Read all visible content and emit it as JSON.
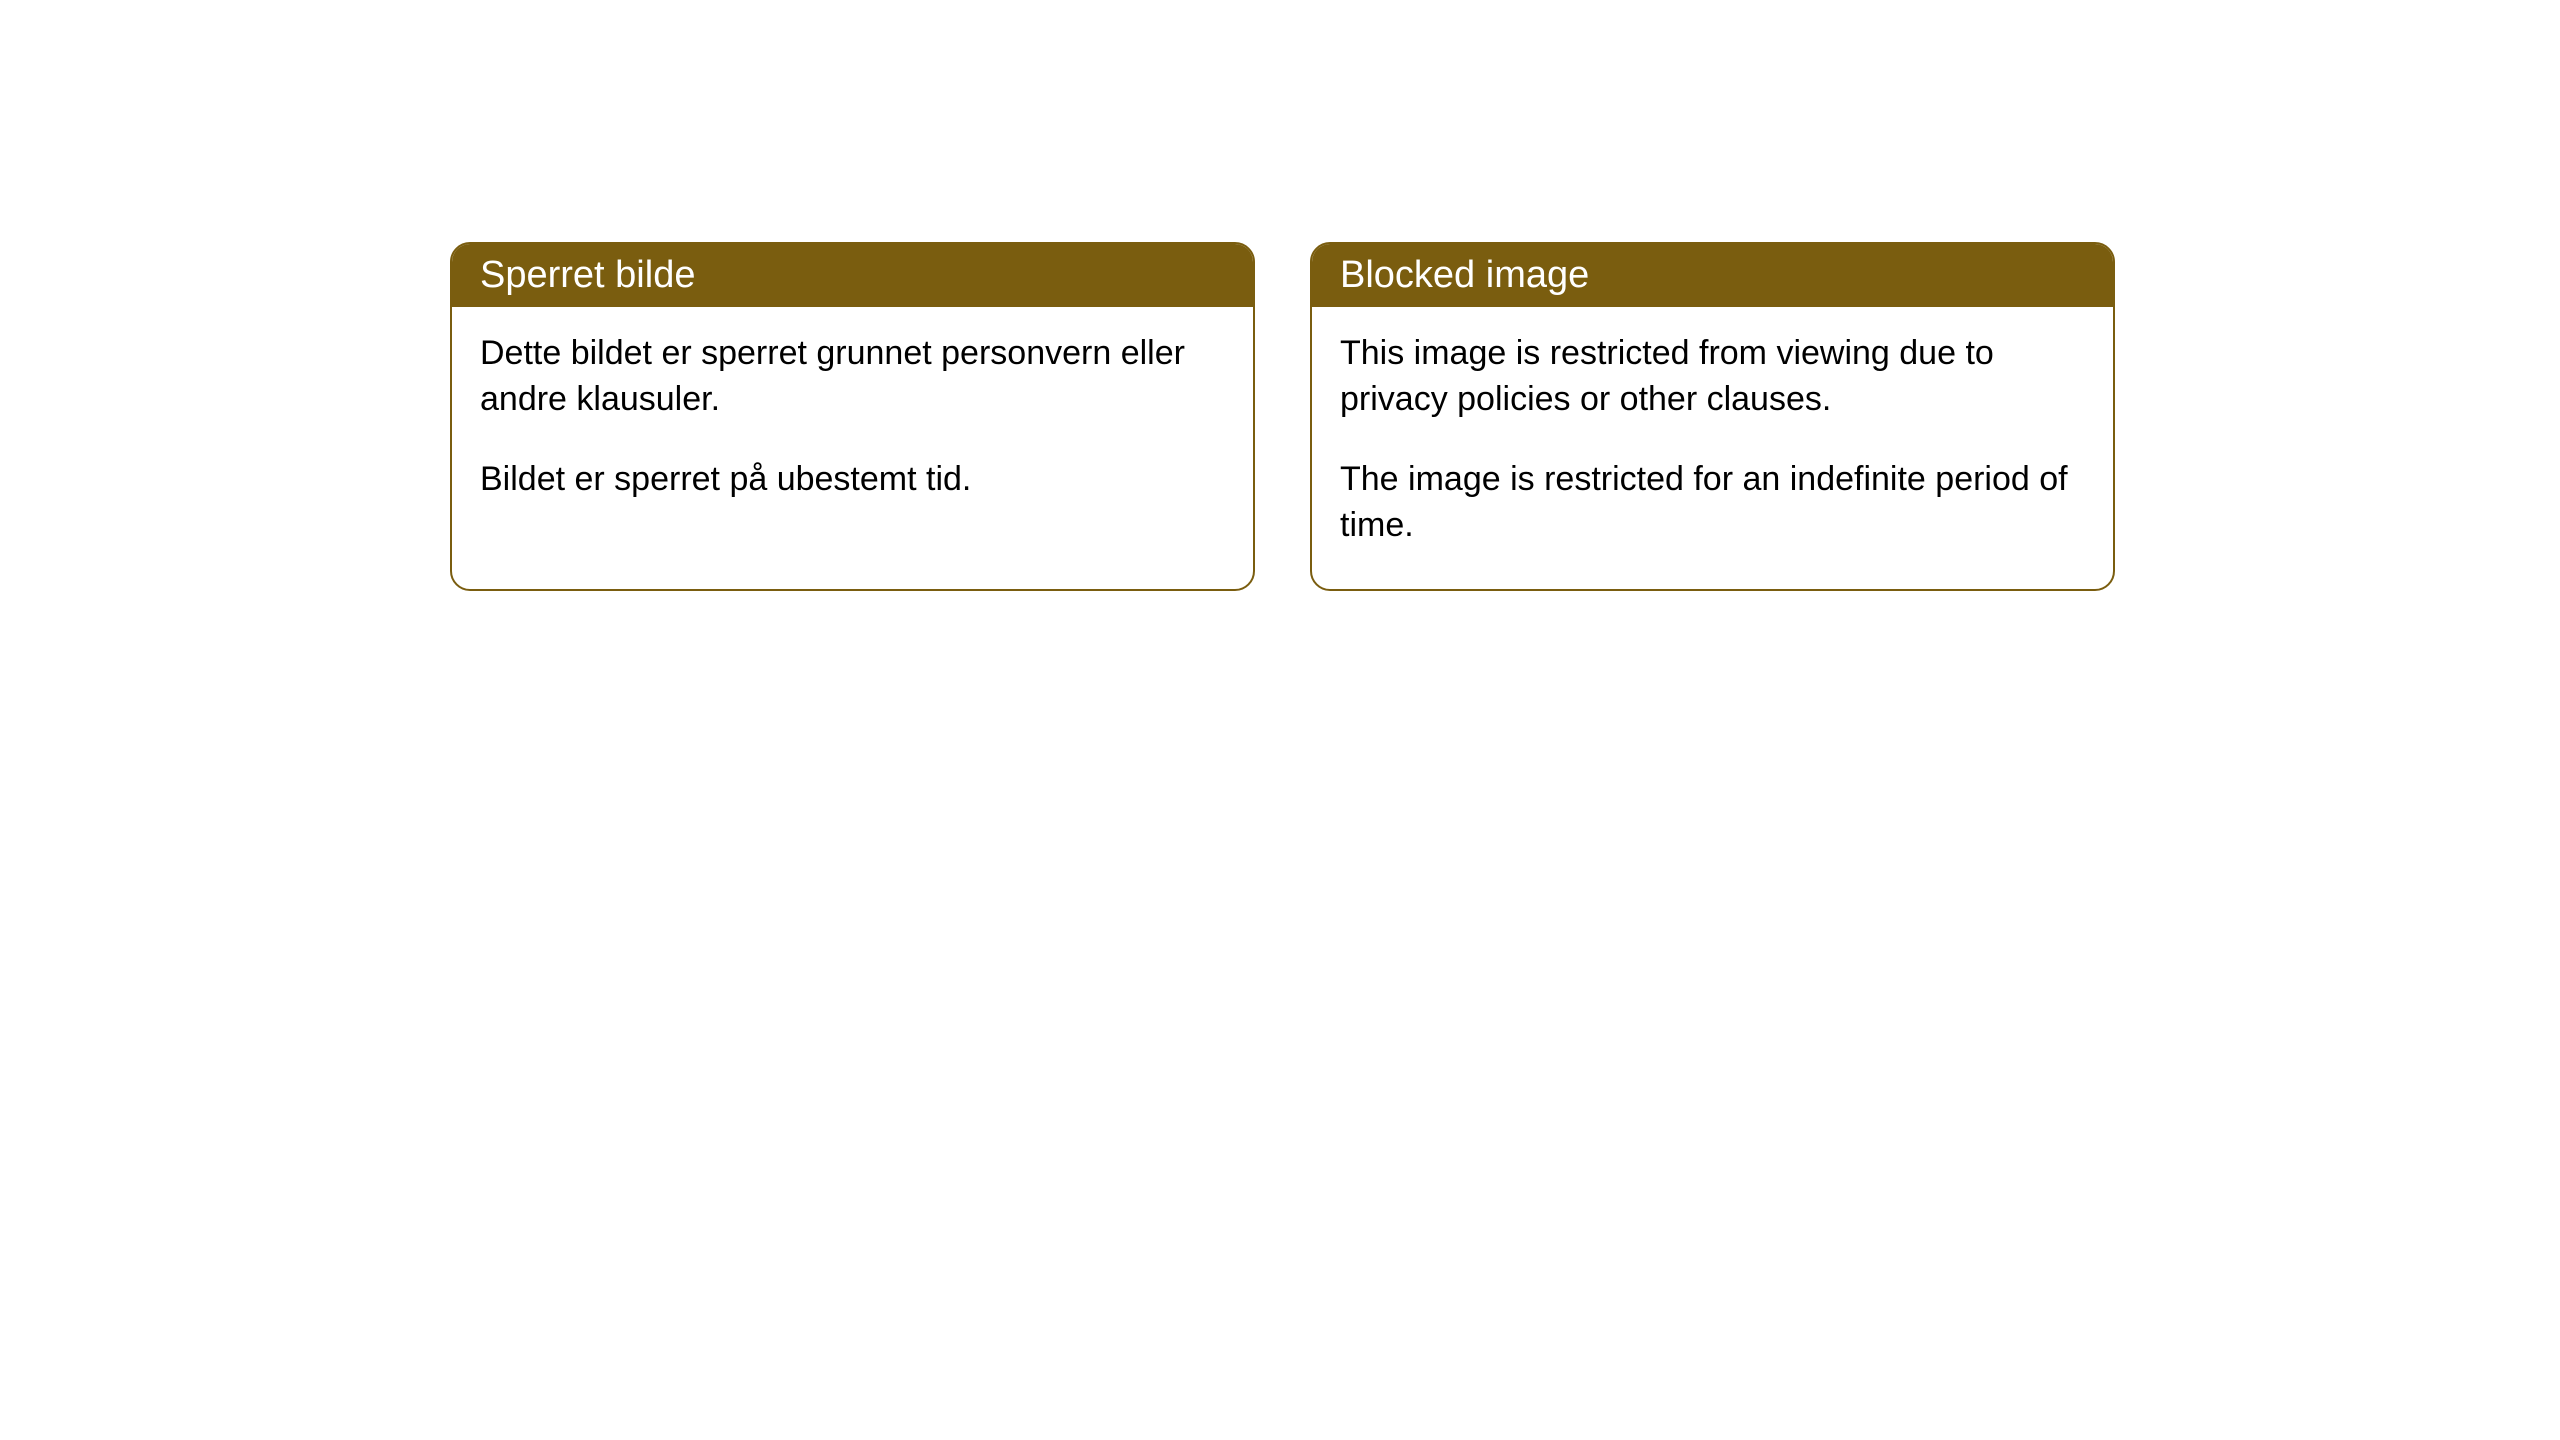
{
  "cards": [
    {
      "title": "Sperret bilde",
      "paragraph1": "Dette bildet er sperret grunnet personvern eller andre klausuler.",
      "paragraph2": "Bildet er sperret på ubestemt tid."
    },
    {
      "title": "Blocked image",
      "paragraph1": "This image is restricted from viewing due to privacy policies or other clauses.",
      "paragraph2": "The image is restricted for an indefinite period of time."
    }
  ],
  "styling": {
    "header_background": "#7a5d0f",
    "header_text_color": "#ffffff",
    "border_color": "#7a5d0f",
    "body_background": "#ffffff",
    "body_text_color": "#000000",
    "border_radius": 20,
    "title_fontsize": 38,
    "body_fontsize": 34
  }
}
